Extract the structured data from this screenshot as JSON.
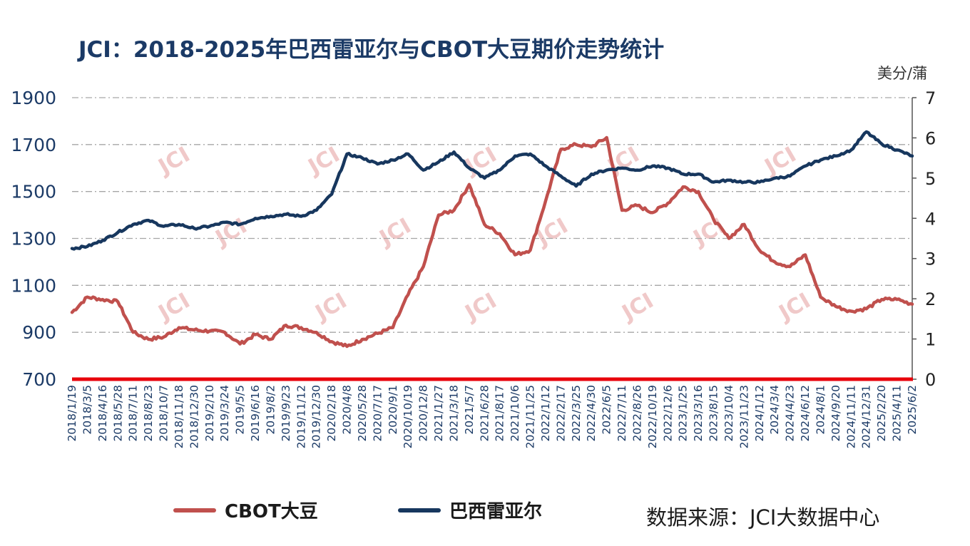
{
  "title": "JCI：2018-2025年巴西雷亚尔与CBOT大豆期价走势统计",
  "source": "数据来源：JCI大数据中心",
  "watermark": "JCI",
  "chart_data": {
    "type": "line",
    "title": "JCI：2018-2025年巴西雷亚尔与CBOT大豆期价走势统计",
    "xlabel": "",
    "ylabel": "",
    "y2label": "美分/蒲",
    "ylim": [
      700,
      1900
    ],
    "y2lim": [
      0,
      7
    ],
    "yticks": [
      700,
      900,
      1100,
      1300,
      1500,
      1700,
      1900
    ],
    "y2ticks": [
      0,
      1,
      2,
      3,
      4,
      5,
      6,
      7
    ],
    "grid": true,
    "legend": "bottom",
    "x": [
      "2018/1/19",
      "2018/3/5",
      "2018/4/16",
      "2018/5/28",
      "2018/7/11",
      "2018/8/23",
      "2018/10/7",
      "2018/11/18",
      "2018/12/30",
      "2019/2/10",
      "2019/3/24",
      "2019/5/5",
      "2019/6/16",
      "2019/8/2",
      "2019/9/23",
      "2019/11/12",
      "2019/12/30",
      "2020/2/18",
      "2020/4/8",
      "2020/5/28",
      "2020/7/17",
      "2020/9/1",
      "2020/10/19",
      "2020/12/8",
      "2021/1/27",
      "2021/3/18",
      "2021/5/7",
      "2021/6/28",
      "2021/8/17",
      "2021/10/6",
      "2021/11/25",
      "2022/1/12",
      "2022/2/17",
      "2022/3/25",
      "2022/4/30",
      "2022/6/5",
      "2022/7/11",
      "2022/8/26",
      "2022/10/19",
      "2022/12/6",
      "2023/1/25",
      "2023/3/16",
      "2023/8/15",
      "2023/10/4",
      "2023/11/23",
      "2024/1/12",
      "2024/3/4",
      "2024/4/23",
      "2024/6/12",
      "2024/8/1",
      "2024/9/20",
      "2024/11/11",
      "2024/12/31",
      "2025/2/20",
      "2025/4/11",
      "2025/6/2"
    ],
    "series": [
      {
        "name": "CBOT大豆",
        "axis": "left",
        "color": "#c0504d",
        "values": [
          985,
          1050,
          1040,
          1030,
          900,
          870,
          880,
          920,
          910,
          905,
          900,
          850,
          890,
          870,
          930,
          920,
          900,
          860,
          840,
          870,
          895,
          920,
          1060,
          1180,
          1400,
          1420,
          1530,
          1360,
          1320,
          1230,
          1250,
          1460,
          1680,
          1700,
          1690,
          1730,
          1420,
          1440,
          1410,
          1450,
          1520,
          1500,
          1380,
          1300,
          1360,
          1250,
          1200,
          1180,
          1230,
          1050,
          1010,
          990,
          1000,
          1040,
          1040,
          1020
        ]
      },
      {
        "name": "巴西雷亚尔",
        "axis": "right",
        "color": "#17375e",
        "values": [
          3.25,
          3.3,
          3.45,
          3.65,
          3.85,
          3.95,
          3.8,
          3.85,
          3.75,
          3.8,
          3.9,
          3.85,
          4.0,
          4.05,
          4.1,
          4.05,
          4.2,
          4.6,
          5.6,
          5.5,
          5.35,
          5.45,
          5.6,
          5.2,
          5.4,
          5.65,
          5.25,
          5.0,
          5.2,
          5.55,
          5.6,
          5.3,
          5.05,
          4.8,
          5.1,
          5.2,
          5.25,
          5.2,
          5.3,
          5.25,
          5.1,
          5.1,
          4.9,
          4.95,
          4.9,
          4.9,
          5.0,
          5.05,
          5.3,
          5.45,
          5.55,
          5.7,
          6.15,
          5.85,
          5.7,
          5.55
        ]
      }
    ]
  }
}
